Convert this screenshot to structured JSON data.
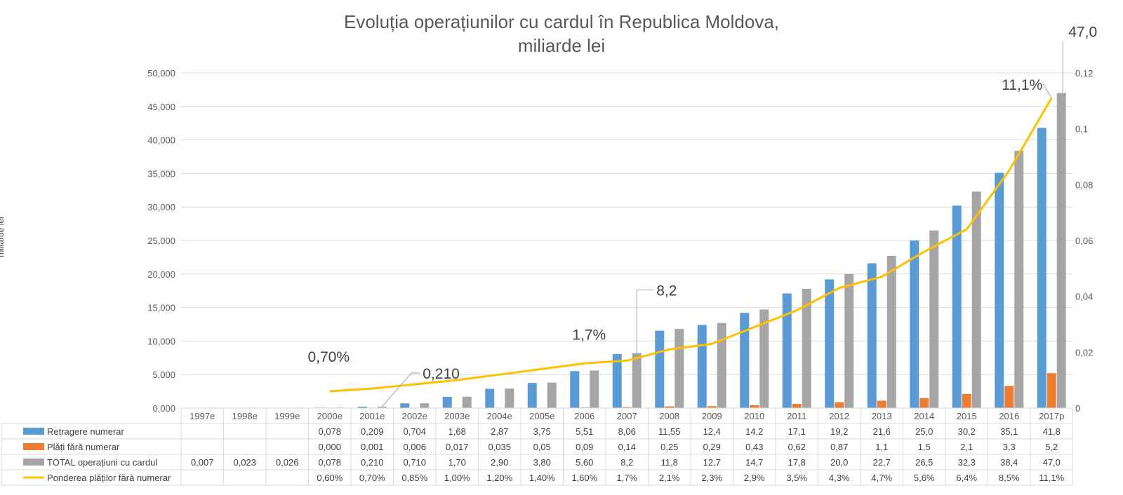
{
  "chart_data": {
    "type": "bar",
    "title_line1": "Evoluția operațiunilor cu cardul în Republica Moldova,",
    "title_line2": "miliarde lei",
    "ylabel": "miliarde lei",
    "ylim": [
      0,
      50000
    ],
    "y2lim": [
      0,
      0.12
    ],
    "yticks": [
      "0,000",
      "5,000",
      "10,000",
      "15,000",
      "20,000",
      "25,000",
      "30,000",
      "35,000",
      "40,000",
      "45,000",
      "50,000"
    ],
    "y2ticks": [
      "0",
      "0,02",
      "0,04",
      "0,06",
      "0,08",
      "0,1",
      "0,12"
    ],
    "grid": true,
    "legend": "data-table",
    "categories": [
      "1997e",
      "1998e",
      "1999e",
      "2000e",
      "2001e",
      "2002e",
      "2003e",
      "2004e",
      "2005e",
      "2006",
      "2007",
      "2008",
      "2009",
      "2010",
      "2011",
      "2012",
      "2013",
      "2014",
      "2015",
      "2016",
      "2017p"
    ],
    "series": [
      {
        "name": "Retragere numerar",
        "kind": "bar",
        "color": "#5b9bd5",
        "values": [
          null,
          null,
          null,
          78,
          209,
          704,
          1680,
          2870,
          3750,
          5510,
          8060,
          11550,
          12400,
          14200,
          17100,
          19200,
          21600,
          25000,
          30200,
          35100,
          41800
        ],
        "labels": [
          "",
          "",
          "",
          "0,078",
          "0,209",
          "0,704",
          "1,68",
          "2,87",
          "3,75",
          "5,51",
          "8,06",
          "11,55",
          "12,4",
          "14,2",
          "17,1",
          "19,2",
          "21,6",
          "25,0",
          "30,2",
          "35,1",
          "41,8"
        ]
      },
      {
        "name": "Plăți fără numerar",
        "kind": "bar",
        "color": "#ed7d31",
        "values": [
          null,
          null,
          null,
          0,
          1,
          6,
          17,
          35,
          50,
          90,
          140,
          250,
          290,
          430,
          620,
          870,
          1100,
          1500,
          2100,
          3300,
          5200
        ],
        "labels": [
          "",
          "",
          "",
          "0,000",
          "0,001",
          "0,006",
          "0,017",
          "0,035",
          "0,05",
          "0,09",
          "0,14",
          "0,25",
          "0,29",
          "0,43",
          "0,62",
          "0,87",
          "1,1",
          "1,5",
          "2,1",
          "3,3",
          "5,2"
        ]
      },
      {
        "name": "TOTAL operațiuni cu cardul",
        "kind": "bar",
        "color": "#a5a5a5",
        "values": [
          7,
          23,
          26,
          78,
          210,
          710,
          1700,
          2900,
          3800,
          5600,
          8200,
          11800,
          12700,
          14700,
          17800,
          20000,
          22700,
          26500,
          32300,
          38400,
          47000
        ],
        "labels": [
          "0,007",
          "0,023",
          "0,026",
          "0,078",
          "0,210",
          "0,710",
          "1,70",
          "2,90",
          "3,80",
          "5,60",
          "8,2",
          "11,8",
          "12,7",
          "14,7",
          "17,8",
          "20,0",
          "22,7",
          "26,5",
          "32,3",
          "38,4",
          "47,0"
        ]
      },
      {
        "name": "Ponderea plăților fără numerar",
        "kind": "line",
        "axis": "secondary",
        "color": "#ffc000",
        "values": [
          null,
          null,
          null,
          0.006,
          0.007,
          0.0085,
          0.01,
          0.012,
          0.014,
          0.016,
          0.017,
          0.021,
          0.023,
          0.029,
          0.035,
          0.043,
          0.047,
          0.056,
          0.064,
          0.085,
          0.111
        ],
        "labels": [
          "",
          "",
          "",
          "0,60%",
          "0,70%",
          "0,85%",
          "1,00%",
          "1,20%",
          "1,40%",
          "1,60%",
          "1,7%",
          "2,1%",
          "2,3%",
          "2,9%",
          "3,5%",
          "4,3%",
          "4,7%",
          "5,6%",
          "6,4%",
          "8,5%",
          "11,1%"
        ]
      }
    ],
    "annotations": [
      {
        "text": "0,70%",
        "series": 3,
        "index": 4
      },
      {
        "text": "0,210",
        "series": 2,
        "index": 4
      },
      {
        "text": "1,7%",
        "series": 3,
        "index": 10
      },
      {
        "text": "8,2",
        "series": 2,
        "index": 10
      },
      {
        "text": "11,1%",
        "series": 3,
        "index": 20
      },
      {
        "text": "47,0",
        "series": 2,
        "index": 20
      }
    ]
  }
}
